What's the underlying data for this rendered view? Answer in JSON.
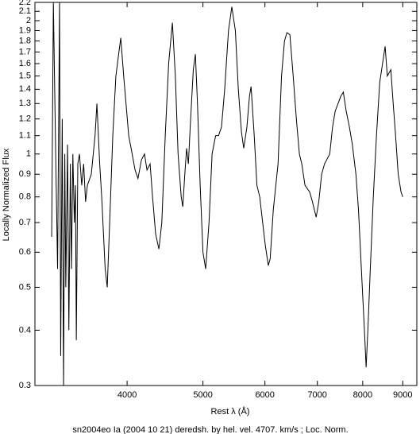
{
  "chart_data": {
    "type": "line",
    "caption": "sn2004eo Ia (2004 10 21) deredsh. by hel. vel.  4707. km/s ;  Loc. Norm.",
    "xlabel": "Rest λ (Å)",
    "ylabel": "Locally Normalized Flux",
    "xscale": "log",
    "yscale": "log",
    "color": "#000000",
    "xlim": [
      3050,
      9380
    ],
    "xticks": [
      4000,
      5000,
      6000,
      7000,
      8000,
      9000
    ],
    "ylim": [
      0.3,
      2.2
    ],
    "yticks": [
      0.3,
      0.4,
      0.5,
      0.6,
      0.7,
      0.8,
      0.9,
      1,
      1.1,
      1.2,
      1.3,
      1.4,
      1.5,
      1.6,
      1.7,
      1.8,
      1.9,
      2,
      2.1,
      2.2
    ],
    "x": [
      3204,
      3220,
      3242,
      3260,
      3279,
      3290,
      3305,
      3318,
      3330,
      3340,
      3357,
      3370,
      3385,
      3396,
      3410,
      3425,
      3436,
      3445,
      3460,
      3477,
      3500,
      3520,
      3540,
      3559,
      3600,
      3640,
      3660,
      3690,
      3712,
      3750,
      3773,
      3800,
      3835,
      3870,
      3926,
      3960,
      4019,
      4060,
      4095,
      4130,
      4172,
      4210,
      4241,
      4280,
      4311,
      4350,
      4392,
      4430,
      4475,
      4520,
      4570,
      4610,
      4647,
      4690,
      4712,
      4740,
      4765,
      4790,
      4822,
      4860,
      4890,
      4920,
      4959,
      5000,
      5040,
      5090,
      5136,
      5190,
      5234,
      5280,
      5330,
      5390,
      5443,
      5500,
      5548,
      5600,
      5637,
      5690,
      5733,
      5760,
      5814,
      5860,
      5909,
      5960,
      6008,
      6060,
      6093,
      6150,
      6236,
      6300,
      6355,
      6400,
      6457,
      6520,
      6581,
      6640,
      6687,
      6750,
      6845,
      6900,
      6976,
      7030,
      7089,
      7150,
      7260,
      7320,
      7378,
      7440,
      7500,
      7556,
      7620,
      7693,
      7760,
      7841,
      7900,
      7968,
      8040,
      8080,
      8122,
      8180,
      8253,
      8330,
      8410,
      8480,
      8545,
      8600,
      8690,
      8750,
      8812,
      8880,
      8955,
      9000
    ],
    "values": [
      0.65,
      2.2,
      1.0,
      0.55,
      2.2,
      0.35,
      1.2,
      0.3,
      1.0,
      0.5,
      1.05,
      0.4,
      0.95,
      0.55,
      1.0,
      0.7,
      0.85,
      0.38,
      0.95,
      1.0,
      0.85,
      0.95,
      0.78,
      0.85,
      0.9,
      1.1,
      1.3,
      0.95,
      0.8,
      0.55,
      0.5,
      0.7,
      1.1,
      1.5,
      1.83,
      1.5,
      1.1,
      1.0,
      0.92,
      0.88,
      0.97,
      1.0,
      0.92,
      0.95,
      0.8,
      0.66,
      0.61,
      0.7,
      1.1,
      1.6,
      1.98,
      1.5,
      1.0,
      0.8,
      0.76,
      0.9,
      1.03,
      0.95,
      1.2,
      1.55,
      1.68,
      1.3,
      0.85,
      0.6,
      0.55,
      0.7,
      1.0,
      1.1,
      1.1,
      1.15,
      1.4,
      1.9,
      2.15,
      1.9,
      1.4,
      1.12,
      1.03,
      1.15,
      1.35,
      1.42,
      1.1,
      0.85,
      0.8,
      0.7,
      0.62,
      0.56,
      0.58,
      0.75,
      0.95,
      1.5,
      1.8,
      1.88,
      1.86,
      1.5,
      1.2,
      1.0,
      0.95,
      0.85,
      0.82,
      0.78,
      0.72,
      0.78,
      0.9,
      0.95,
      1.0,
      1.15,
      1.25,
      1.3,
      1.35,
      1.38,
      1.25,
      1.15,
      1.05,
      0.9,
      0.75,
      0.55,
      0.4,
      0.33,
      0.4,
      0.55,
      0.8,
      1.1,
      1.45,
      1.6,
      1.75,
      1.5,
      1.55,
      1.3,
      1.1,
      0.9,
      0.82,
      0.8
    ]
  }
}
